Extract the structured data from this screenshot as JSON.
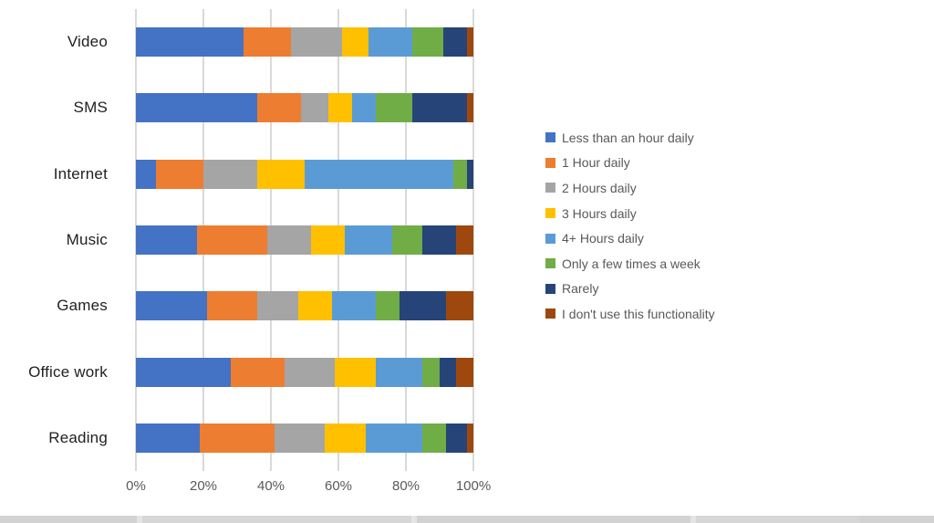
{
  "chart_data": {
    "type": "bar",
    "orientation": "horizontal",
    "stacked": true,
    "title": "",
    "xlabel": "",
    "ylabel": "",
    "xlim": [
      0,
      100
    ],
    "x_ticks": [
      "0%",
      "20%",
      "40%",
      "60%",
      "80%",
      "100%"
    ],
    "grid": "vertical",
    "legend_position": "right",
    "categories": [
      "Video",
      "SMS",
      "Internet",
      "Music",
      "Games",
      "Office work",
      "Reading"
    ],
    "series": [
      {
        "name": "Less than an hour daily",
        "color": "#4472C4",
        "values": [
          32,
          36,
          6,
          18,
          21,
          28,
          19
        ]
      },
      {
        "name": "1 Hour daily",
        "color": "#ED7D31",
        "values": [
          14,
          13,
          14,
          21,
          15,
          16,
          22
        ]
      },
      {
        "name": "2 Hours daily",
        "color": "#A5A5A5",
        "values": [
          15,
          8,
          16,
          13,
          12,
          15,
          15
        ]
      },
      {
        "name": "3 Hours daily",
        "color": "#FFC000",
        "values": [
          8,
          7,
          14,
          10,
          10,
          12,
          12
        ]
      },
      {
        "name": "4+ Hours daily",
        "color": "#5B9BD5",
        "values": [
          13,
          7,
          44,
          14,
          13,
          14,
          17
        ]
      },
      {
        "name": "Only a few times a week",
        "color": "#70AD47",
        "values": [
          9,
          11,
          4,
          9,
          7,
          5,
          7
        ]
      },
      {
        "name": "Rarely",
        "color": "#264478",
        "values": [
          7,
          16,
          2,
          10,
          14,
          5,
          6
        ]
      },
      {
        "name": "I don't use this functionality",
        "color": "#9E480E",
        "values": [
          2,
          2,
          0,
          5,
          8,
          5,
          2
        ]
      }
    ]
  }
}
